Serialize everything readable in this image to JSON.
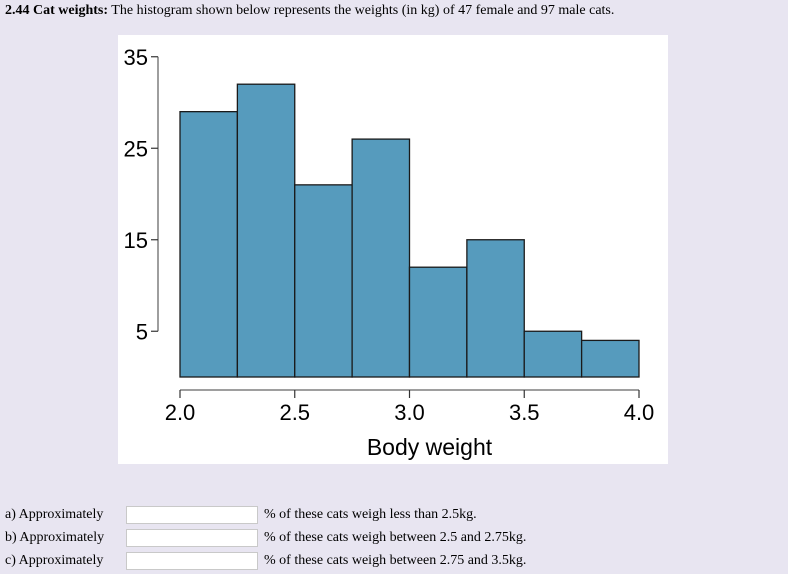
{
  "header": {
    "number_label": "2.44 Cat weights:",
    "description": "The histogram shown below represents the weights (in kg) of 47 female and 97 male cats."
  },
  "colors": {
    "page_background": "#e8e5f1",
    "bar_fill": "#569bbd",
    "bar_stroke": "#1a1a1a",
    "axis": "#7f7f7f"
  },
  "chart_data": {
    "type": "bar",
    "title": "",
    "xlabel": "Body weight",
    "ylabel": "",
    "bins": [
      [
        2.0,
        2.25
      ],
      [
        2.25,
        2.5
      ],
      [
        2.5,
        2.75
      ],
      [
        2.75,
        3.0
      ],
      [
        3.0,
        3.25
      ],
      [
        3.25,
        3.5
      ],
      [
        3.5,
        3.75
      ],
      [
        3.75,
        4.0
      ]
    ],
    "categories": [
      "2.0-2.25",
      "2.25-2.5",
      "2.5-2.75",
      "2.75-3.0",
      "3.0-3.25",
      "3.25-3.5",
      "3.5-3.75",
      "3.75-4.0"
    ],
    "values": [
      29,
      32,
      21,
      26,
      12,
      15,
      5,
      4
    ],
    "x_ticks": [
      "2.0",
      "2.5",
      "3.0",
      "3.5",
      "4.0"
    ],
    "y_ticks": [
      "5",
      "15",
      "25",
      "35"
    ],
    "xlim": [
      2.0,
      4.0
    ],
    "ylim": [
      0,
      35
    ],
    "grid": false,
    "legend": null
  },
  "questions": [
    {
      "prefix": "a) Approximately",
      "value": "",
      "suffix": "% of these cats weigh less than 2.5kg."
    },
    {
      "prefix": "b) Approximately",
      "value": "",
      "suffix": "% of these cats weigh between 2.5 and 2.75kg."
    },
    {
      "prefix": "c) Approximately",
      "value": "",
      "suffix": "% of these cats weigh between 2.75 and 3.5kg."
    }
  ]
}
